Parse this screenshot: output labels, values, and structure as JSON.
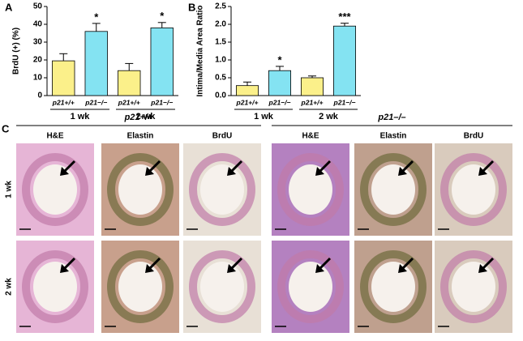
{
  "chart_data": [
    {
      "type": "bar",
      "panel_label": "A",
      "y_label": "BrdU (+) (%)",
      "categories": [
        "p21+/+",
        "p21−/−",
        "p21+/+",
        "p21−/−"
      ],
      "groups": [
        "1 wk",
        "2 wk"
      ],
      "values": [
        19.5,
        36,
        14,
        38
      ],
      "errors": [
        4,
        4.5,
        4,
        3
      ],
      "colors": [
        "#fbf08a",
        "#84e3f2",
        "#fbf08a",
        "#84e3f2"
      ],
      "annotations": [
        null,
        "*",
        null,
        "*"
      ],
      "ylim": [
        0,
        50
      ],
      "yticks": [
        0,
        10,
        20,
        30,
        40,
        50
      ]
    },
    {
      "type": "bar",
      "panel_label": "B",
      "y_label": "Intima/Media Area Ratio",
      "categories": [
        "p21+/+",
        "p21−/−",
        "p21+/+",
        "p21−/−"
      ],
      "groups": [
        "1 wk",
        "2 wk"
      ],
      "values": [
        0.28,
        0.7,
        0.5,
        1.95
      ],
      "errors": [
        0.1,
        0.12,
        0.05,
        0.08
      ],
      "colors": [
        "#fbf08a",
        "#84e3f2",
        "#fbf08a",
        "#84e3f2"
      ],
      "annotations": [
        null,
        "*",
        null,
        "***"
      ],
      "ylim": [
        0,
        2.5
      ],
      "yticks": [
        {
          "value": 0,
          "label": "0.0"
        },
        0.5,
        {
          "value": 1,
          "label": "1.0"
        },
        1.5,
        {
          "value": 2,
          "label": "2.0"
        },
        2.5
      ]
    }
  ],
  "panel_c": {
    "label": "C",
    "rows": [
      "1 wk",
      "2 wk"
    ],
    "groups": [
      {
        "title": "p21+/+",
        "columns": [
          "H&E",
          "Elastin",
          "BrdU"
        ]
      },
      {
        "title": "p21–/–",
        "columns": [
          "H&E",
          "Elastin",
          "BrdU"
        ]
      }
    ]
  }
}
